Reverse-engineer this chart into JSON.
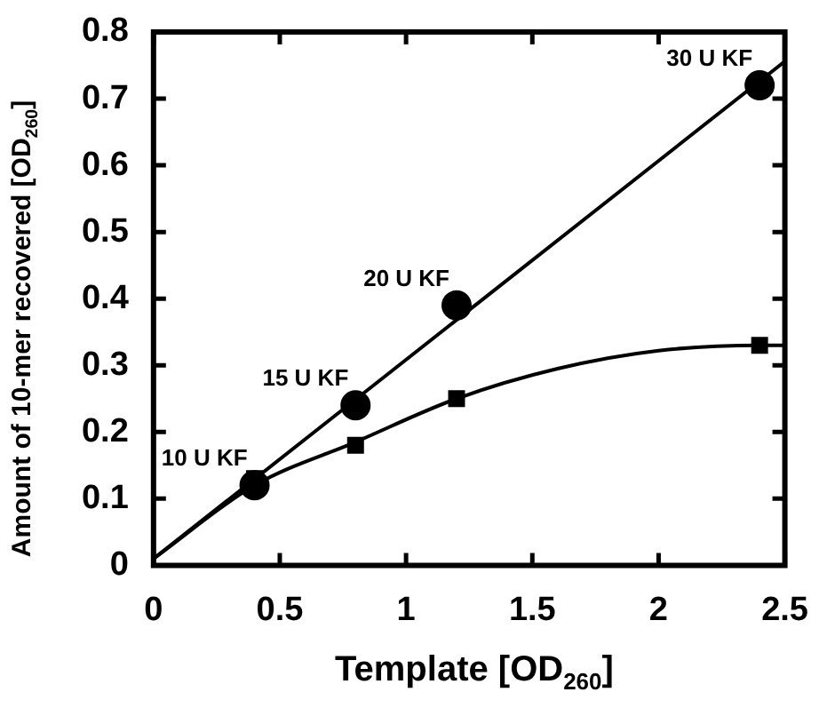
{
  "chart_data": {
    "type": "scatter",
    "xlabel": "Template [OD$_{260}$]",
    "ylabel": "Amount of 10-mer recovered [OD$_{260}$]",
    "xlim": [
      0,
      2.5
    ],
    "xticks": [
      0,
      0.5,
      1,
      1.5,
      2,
      2.5
    ],
    "ylim": [
      0,
      0.8
    ],
    "yticks": [
      0,
      0.1,
      0.2,
      0.3,
      0.4,
      0.5,
      0.6,
      0.7,
      0.8
    ],
    "series": [
      {
        "type": "scatter",
        "marker": "circle",
        "color": "#000000",
        "x": [
          0.4,
          0.8,
          1.2,
          2.4
        ],
        "values": [
          0.12,
          0.24,
          0.39,
          0.72
        ]
      },
      {
        "type": "scatter",
        "marker": "square",
        "color": "#000000",
        "x": [
          0.4,
          0.8,
          1.2,
          2.4
        ],
        "values": [
          0.13,
          0.18,
          0.25,
          0.33
        ]
      },
      {
        "type": "line",
        "marker": "none",
        "line_style": "solid",
        "color": "#000000",
        "x": [
          0,
          2.5
        ],
        "values": [
          0.01,
          0.756
        ]
      },
      {
        "type": "line",
        "marker": "none",
        "line_style": "solid",
        "color": "#000000",
        "x": [
          0,
          0.4,
          0.8,
          1.2,
          1.6,
          2.0,
          2.4,
          2.5
        ],
        "values": [
          0.01,
          0.12,
          0.185,
          0.25,
          0.295,
          0.322,
          0.33,
          0.33
        ]
      }
    ],
    "annotations": [
      {
        "text": "10 U KF",
        "x": 0.4,
        "y": 0.12
      },
      {
        "text": "15 U KF",
        "x": 0.8,
        "y": 0.24
      },
      {
        "text": "20 U KF",
        "x": 1.2,
        "y": 0.39
      },
      {
        "text": "30 U KF",
        "x": 2.4,
        "y": 0.72
      }
    ]
  }
}
